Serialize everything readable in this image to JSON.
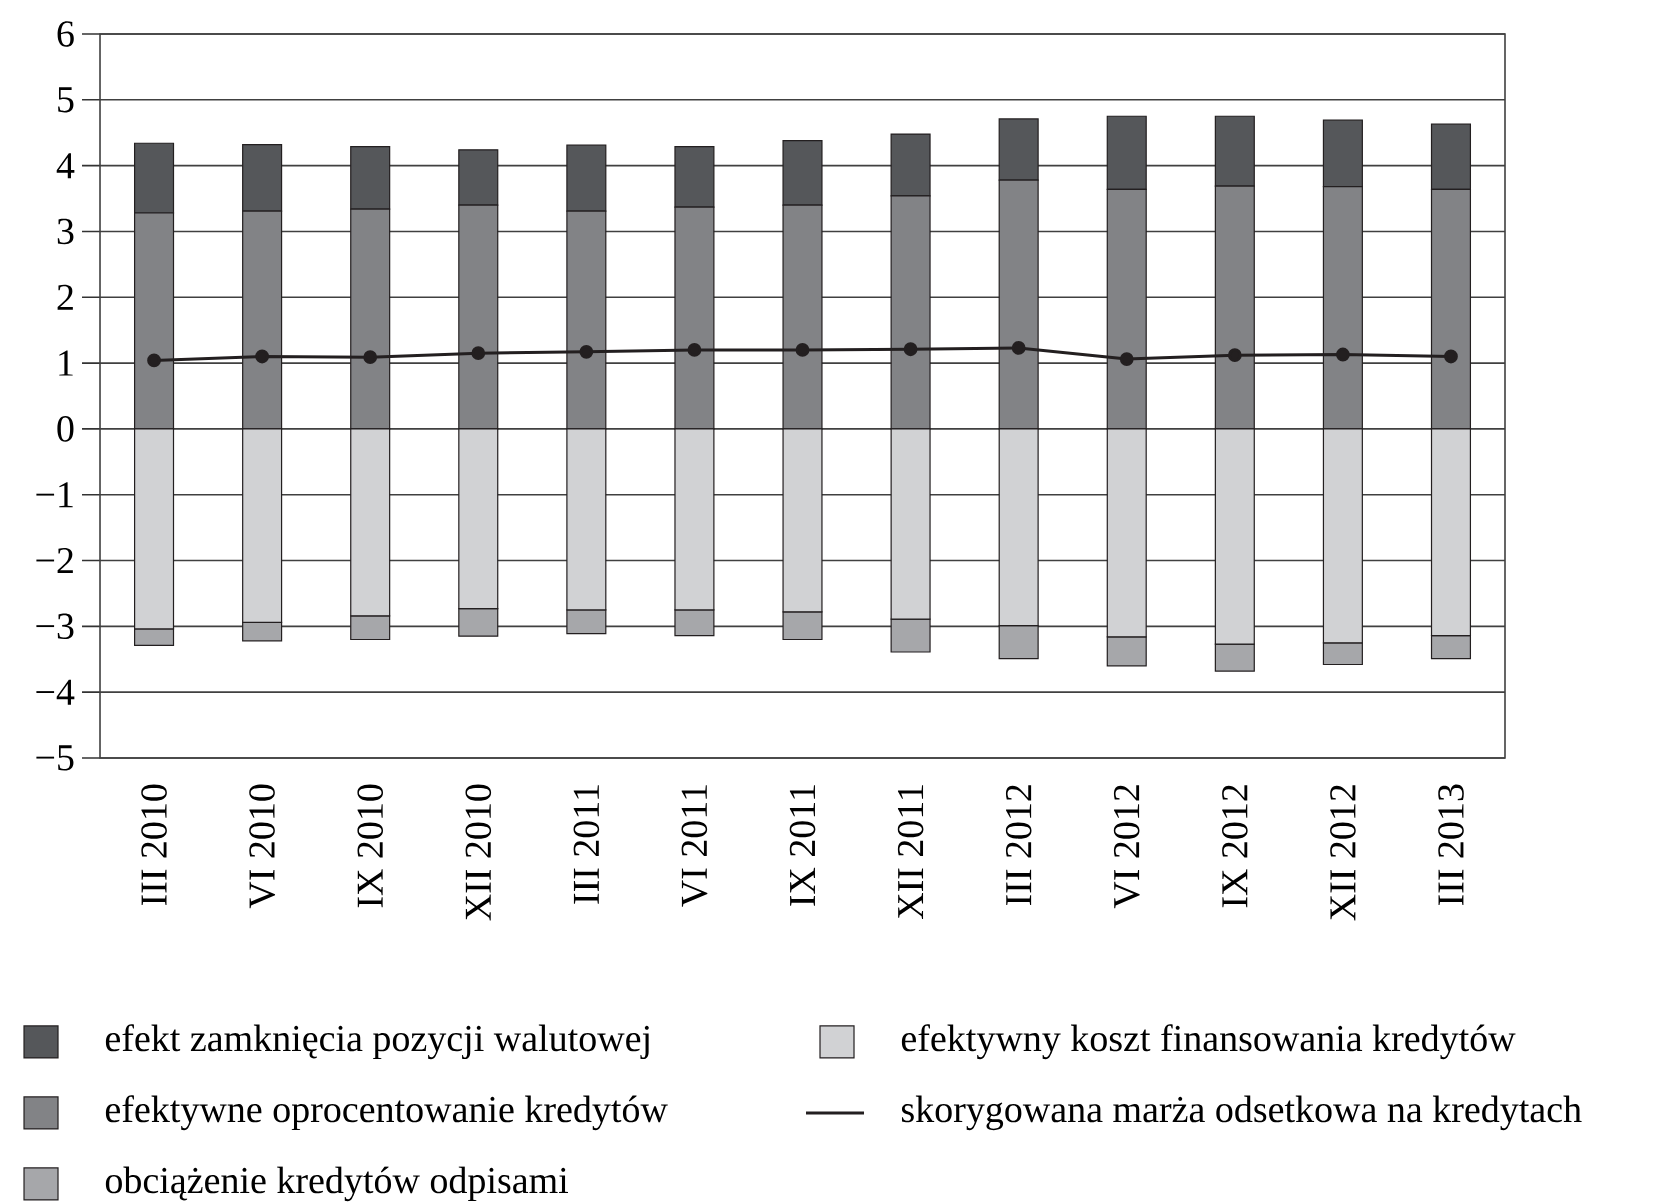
{
  "chart_data": {
    "type": "bar",
    "stacked": true,
    "categories": [
      "III 2010",
      "VI 2010",
      "IX 2010",
      "XII 2010",
      "III 2011",
      "VI 2011",
      "IX 2011",
      "XII 2011",
      "III 2012",
      "VI 2012",
      "IX 2012",
      "XII 2012",
      "III 2013"
    ],
    "series": [
      {
        "name": "efektywne oprocentowanie kredytów",
        "color": "#828386",
        "values": [
          3.28,
          3.31,
          3.34,
          3.4,
          3.31,
          3.37,
          3.4,
          3.54,
          3.78,
          3.64,
          3.69,
          3.68,
          3.64
        ]
      },
      {
        "name": "efekt zamknięcia pozycji walutowej",
        "color": "#55575a",
        "values": [
          1.06,
          1.01,
          0.95,
          0.84,
          1.0,
          0.92,
          0.98,
          0.94,
          0.93,
          1.11,
          1.06,
          1.01,
          0.99
        ]
      },
      {
        "name": "efektywny koszt finansowania kredytów",
        "color": "#d1d2d4",
        "values": [
          -3.04,
          -2.94,
          -2.84,
          -2.73,
          -2.75,
          -2.75,
          -2.78,
          -2.89,
          -2.99,
          -3.16,
          -3.27,
          -3.25,
          -3.14
        ]
      },
      {
        "name": "obciążenie kredytów odpisami",
        "color": "#a6a7aa",
        "values": [
          -0.25,
          -0.28,
          -0.36,
          -0.42,
          -0.36,
          -0.39,
          -0.42,
          -0.5,
          -0.5,
          -0.44,
          -0.41,
          -0.33,
          -0.35
        ]
      },
      {
        "name": "skorygowana marża odsetkowa na kredytach",
        "type": "line",
        "color": "#231f20",
        "values": [
          1.04,
          1.1,
          1.09,
          1.15,
          1.17,
          1.2,
          1.2,
          1.21,
          1.23,
          1.06,
          1.12,
          1.13,
          1.1
        ]
      }
    ],
    "ylim": [
      -5,
      6
    ],
    "yticks": [
      {
        "value": -5,
        "label": "−5"
      },
      {
        "value": -4,
        "label": "−4"
      },
      {
        "value": -3,
        "label": "−3"
      },
      {
        "value": -2,
        "label": "−2"
      },
      {
        "value": -1,
        "label": "−1"
      },
      0,
      1,
      2,
      3,
      4,
      5,
      6
    ],
    "grid": "y",
    "legend": "bottom",
    "marker": "circle",
    "line_style": "solid"
  }
}
